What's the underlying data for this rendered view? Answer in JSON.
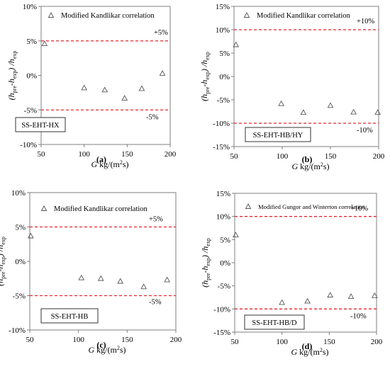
{
  "chart_data": [
    {
      "type": "scatter",
      "panel_label": "(a)",
      "box_label": "SS-EHT-HX",
      "legend": "Modified Kandlikar correlation",
      "xlim": [
        50,
        200
      ],
      "xticks": [
        50,
        100,
        150,
        200
      ],
      "ylim": [
        -10,
        10
      ],
      "yticks": [
        -10,
        -5,
        0,
        5,
        10
      ],
      "ytick_labels": [
        "-10%",
        "-5%",
        "0%",
        "5%",
        "10%"
      ],
      "ref_lines": [
        5,
        -5
      ],
      "ref_labels": [
        "+5%",
        "-5%"
      ],
      "x": [
        54,
        100,
        124,
        147,
        167,
        191
      ],
      "y": [
        4.6,
        -1.8,
        -2.1,
        -3.3,
        -1.9,
        0.3
      ]
    },
    {
      "type": "scatter",
      "panel_label": "(b)",
      "box_label": "SS-EHT-HB/HY",
      "legend": "Modified Kandlikar correlation",
      "xlim": [
        50,
        200
      ],
      "xticks": [
        50,
        100,
        150,
        200
      ],
      "ylim": [
        -15,
        15
      ],
      "yticks": [
        -15,
        -10,
        -5,
        0,
        5,
        10,
        15
      ],
      "ytick_labels": [
        "-15%",
        "-10%",
        "-5%",
        "0%",
        "5%",
        "10%",
        "15%"
      ],
      "ref_lines": [
        10,
        -10
      ],
      "ref_labels": [
        "+10%",
        "-10%"
      ],
      "x": [
        52,
        99,
        122,
        150,
        174,
        199
      ],
      "y": [
        6.8,
        -5.8,
        -7.7,
        -6.2,
        -7.6,
        -7.7
      ]
    },
    {
      "type": "scatter",
      "panel_label": "(c)",
      "box_label": "SS-EHT-HB",
      "legend": "Modified Kandlikar correlation",
      "xlim": [
        50,
        200
      ],
      "xticks": [
        50,
        100,
        150,
        200
      ],
      "ylim": [
        -10,
        10
      ],
      "yticks": [
        -10,
        -5,
        0,
        5,
        10
      ],
      "ytick_labels": [
        "-10%",
        "-5%",
        "0%",
        "5%",
        "10%"
      ],
      "ref_lines": [
        5,
        -5
      ],
      "ref_labels": [
        "+5%",
        "-5%"
      ],
      "x": [
        51,
        103,
        123,
        143,
        167,
        191
      ],
      "y": [
        3.7,
        -2.4,
        -2.5,
        -2.9,
        -3.7,
        -2.7
      ]
    },
    {
      "type": "scatter",
      "panel_label": "(d)",
      "box_label": "SS-EHT-HB/D",
      "legend": "Modified Gungor and Winterton correlation",
      "xlim": [
        50,
        200
      ],
      "xticks": [
        50,
        100,
        150,
        200
      ],
      "ylim": [
        -15,
        15
      ],
      "yticks": [
        -15,
        -10,
        -5,
        0,
        5,
        10,
        15
      ],
      "ytick_labels": [
        "-15%",
        "-10%",
        "-5%",
        "0%",
        "5%",
        "10%",
        "15%"
      ],
      "ref_lines": [
        10,
        -10
      ],
      "ref_labels": [
        "+10%",
        "-10%"
      ],
      "x": [
        51,
        100,
        127,
        151,
        173,
        198
      ],
      "y": [
        6.0,
        -8.6,
        -8.3,
        -7.0,
        -7.3,
        -7.1
      ]
    }
  ],
  "axis_text": {
    "y_open": "(h",
    "y_sub1": "pre",
    "y_mid": "-h",
    "y_sub2": "exp",
    "y_close": ") /h",
    "y_sub3": "exp",
    "x_g": "G",
    "x_units": " kg/(m",
    "x_sup": "2",
    "x_end": "s)"
  }
}
